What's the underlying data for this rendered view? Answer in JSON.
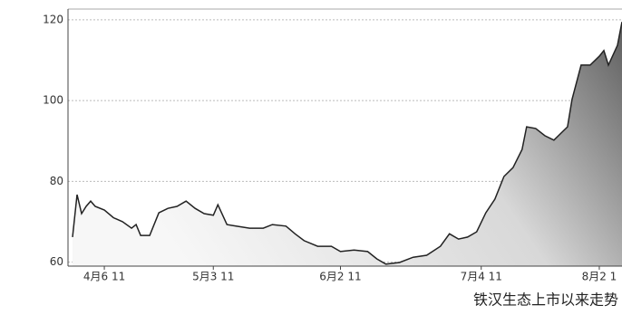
{
  "chart_data": {
    "type": "area",
    "caption": "铁汉生态上市以来走势",
    "x": [
      0,
      1,
      2,
      3,
      4,
      5,
      7,
      9,
      11,
      13,
      14,
      15,
      17,
      19,
      21,
      23,
      25,
      27,
      29,
      31,
      32,
      34,
      36,
      39,
      42,
      44,
      47,
      49,
      51,
      54,
      57,
      59,
      62,
      65,
      67,
      69,
      72,
      75,
      78,
      81,
      83,
      85,
      87,
      89,
      91,
      93,
      95,
      97,
      99,
      100,
      102,
      104,
      106,
      108,
      109,
      110,
      112,
      114,
      116,
      117,
      118,
      120,
      121
    ],
    "values": [
      66.2,
      76.7,
      72,
      73.8,
      75.1,
      73.8,
      72.9,
      71,
      70,
      68.4,
      69.3,
      66.6,
      66.6,
      72.2,
      73.3,
      73.8,
      75.1,
      73.3,
      72,
      71.6,
      74.2,
      69.3,
      68.9,
      68.4,
      68.4,
      69.3,
      68.9,
      67,
      65.3,
      63.9,
      63.9,
      62.6,
      63,
      62.6,
      60.8,
      59.5,
      59.9,
      61.2,
      61.7,
      63.9,
      67,
      65.7,
      66.2,
      67.5,
      72.2,
      75.6,
      81.2,
      83.4,
      87.9,
      93.5,
      93.1,
      91.3,
      90.2,
      92.4,
      93.5,
      100.3,
      108.8,
      108.8,
      111,
      112.4,
      108.8,
      113.7,
      119.5
    ],
    "color": "#222222",
    "xlim": [
      0,
      121
    ],
    "xticks": [
      {
        "value": 7,
        "label": "4月6 11"
      },
      {
        "value": 31,
        "label": "5月3 11"
      },
      {
        "value": 59,
        "label": "6月2 11"
      },
      {
        "value": 90,
        "label": "7月4 11"
      },
      {
        "value": 116,
        "label": "8月2 1"
      }
    ],
    "ylim": [
      59,
      122
    ],
    "yticks": [
      60,
      80,
      100,
      120
    ],
    "grid": true
  }
}
